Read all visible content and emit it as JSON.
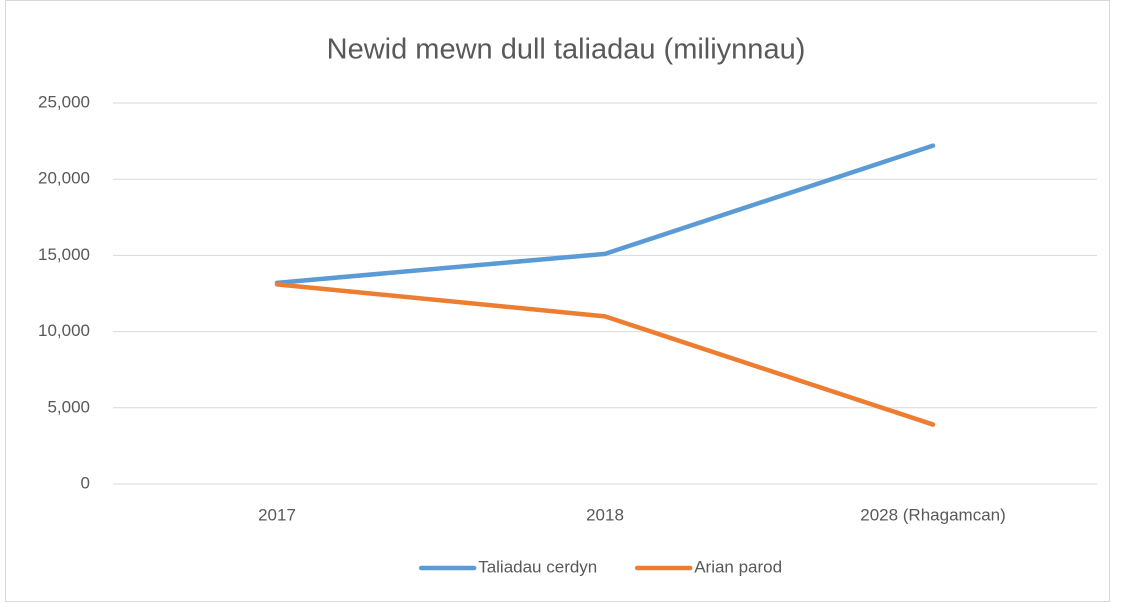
{
  "chart_data": {
    "type": "line",
    "title": "Newid mewn dull taliadau (miliynnau)",
    "categories": [
      "2017",
      "2018",
      "2028 (Rhagamcan)"
    ],
    "series": [
      {
        "name": "Taliadau cerdyn",
        "color": "#5b9bd5",
        "values": [
          13200,
          15100,
          22200
        ]
      },
      {
        "name": "Arian parod",
        "color": "#ed7d31",
        "values": [
          13100,
          11000,
          3900
        ]
      }
    ],
    "ylim": [
      0,
      25000
    ],
    "yticks": [
      0,
      {
        "value": 5000,
        "label": "5,000"
      },
      {
        "value": 10000,
        "label": "10,000"
      },
      {
        "value": 15000,
        "label": "15,000"
      },
      {
        "value": 20000,
        "label": "20,000"
      },
      {
        "value": 25000,
        "label": "25,000"
      }
    ],
    "grid": true,
    "legend": "bottom"
  }
}
